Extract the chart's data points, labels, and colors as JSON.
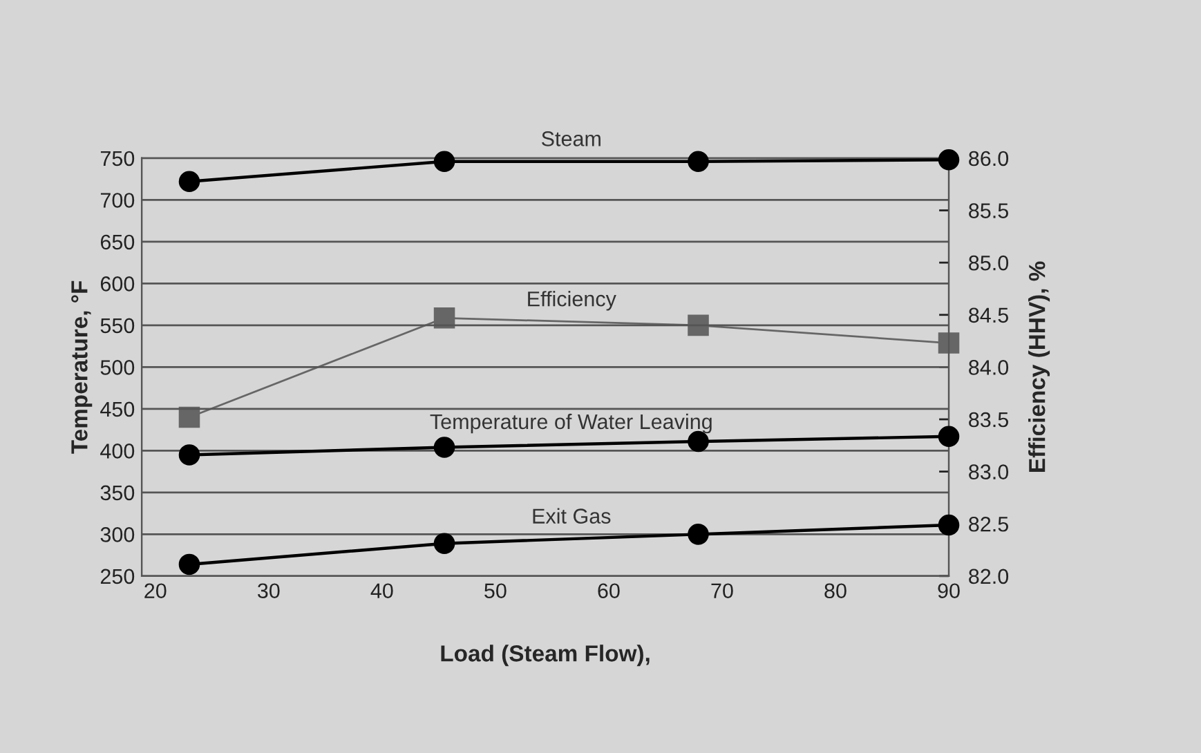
{
  "chart_data": {
    "type": "line",
    "xlabel": "Load (Steam Flow),",
    "ylabel": "Temperature, °F",
    "y2label": "Efficiency (HHV), %",
    "xlim": [
      18.8,
      90
    ],
    "xticks": [
      20,
      30,
      40,
      50,
      60,
      70,
      80,
      90
    ],
    "ylim": [
      250,
      750
    ],
    "yticks": [
      250,
      300,
      350,
      400,
      450,
      500,
      550,
      600,
      650,
      700,
      750
    ],
    "y2lim": [
      82.0,
      86.0
    ],
    "y2ticks": [
      {
        "value": 82.0,
        "label": "82.0"
      },
      {
        "value": 82.5,
        "label": "82.5"
      },
      {
        "value": 83.0,
        "label": "83.0"
      },
      {
        "value": 83.5,
        "label": "83.5"
      },
      {
        "value": 84.0,
        "label": "84.0"
      },
      {
        "value": 84.5,
        "label": "84.5"
      },
      {
        "value": 85.0,
        "label": "85.0"
      },
      {
        "value": 85.5,
        "label": "85.5"
      },
      {
        "value": 86.0,
        "label": "86.0"
      }
    ],
    "x": [
      23,
      45.5,
      67.9,
      90
    ],
    "grid": "y",
    "legend": false,
    "series": [
      {
        "name": "Steam",
        "color": "#000000",
        "marker": "circle",
        "values": [
          722,
          746,
          746,
          748
        ]
      },
      {
        "name": "Efficiency",
        "color": "#666666",
        "marker": "square",
        "axis": "y2",
        "values": [
          83.52,
          84.47,
          84.4,
          84.23
        ]
      },
      {
        "name": "Temperature of Water Leaving",
        "color": "#000000",
        "marker": "circle",
        "values": [
          395,
          404,
          411,
          417
        ]
      },
      {
        "name": "Exit Gas",
        "color": "#000000",
        "marker": "circle",
        "values": [
          264,
          289,
          300,
          311
        ]
      }
    ]
  }
}
